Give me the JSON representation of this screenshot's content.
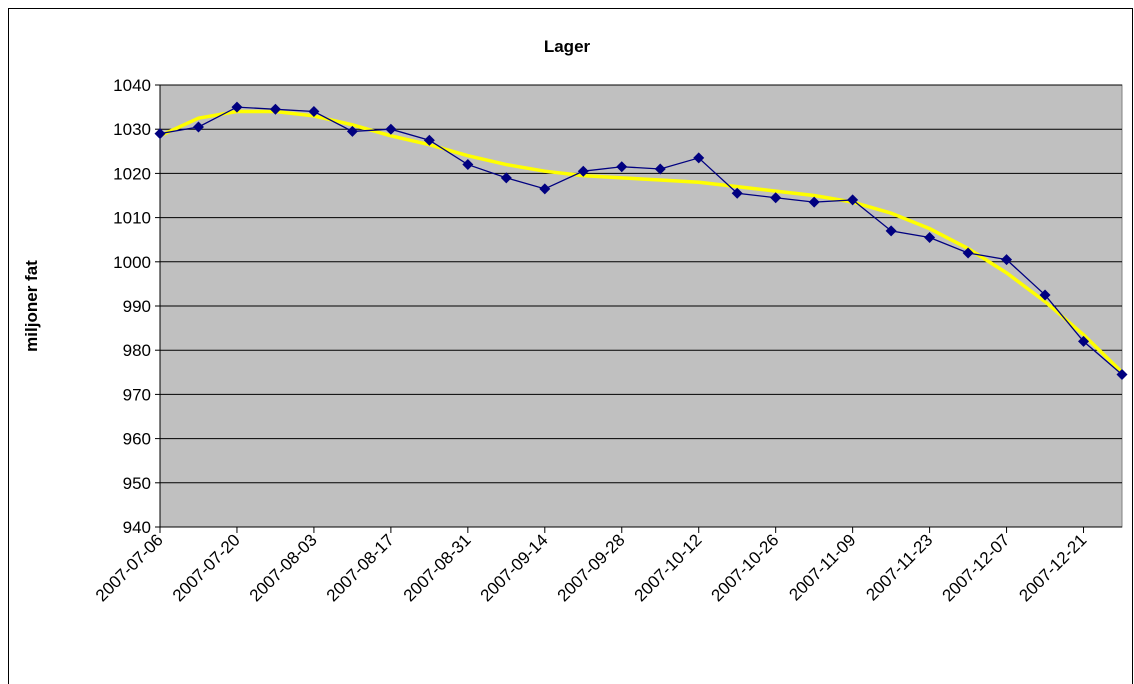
{
  "chart_data": {
    "type": "line",
    "title": "Lager",
    "y_label": "miljoner fat",
    "categories": [
      "2007-07-06",
      null,
      "2007-07-20",
      null,
      "2007-08-03",
      null,
      "2007-08-17",
      null,
      "2007-08-31",
      null,
      "2007-09-14",
      null,
      "2007-09-28",
      null,
      "2007-10-12",
      null,
      "2007-10-26",
      null,
      "2007-11-09",
      null,
      "2007-11-23",
      null,
      "2007-12-07",
      null,
      "2007-12-21",
      null
    ],
    "series": [
      {
        "color": "#000080",
        "marker": "diamond",
        "values": [
          1029,
          1030.5,
          1035,
          1034.5,
          1034,
          1029.5,
          1030,
          1027.5,
          1022,
          1019,
          1016.5,
          1020.5,
          1021.5,
          1021,
          1023.5,
          1015.5,
          1014.5,
          1013.5,
          1014,
          1007,
          1005.5,
          1002,
          1000.5,
          992.5,
          982,
          974.5
        ]
      },
      {
        "color": "#ffff00",
        "values": [
          1028.5,
          1032.5,
          1034,
          1034,
          1033,
          1031,
          1028.5,
          1026.5,
          1024,
          1022,
          1020.5,
          1019.5,
          1019,
          1018.5,
          1018,
          1017,
          1016,
          1015,
          1013.5,
          1011,
          1007.5,
          1003,
          997.5,
          991,
          983.5,
          975
        ]
      }
    ],
    "ylim": [
      940,
      1040
    ],
    "yticks": [
      940,
      950,
      960,
      970,
      980,
      990,
      1000,
      1010,
      1020,
      1030,
      1040
    ],
    "grid": true,
    "plot_background": "#c0c0c0"
  }
}
